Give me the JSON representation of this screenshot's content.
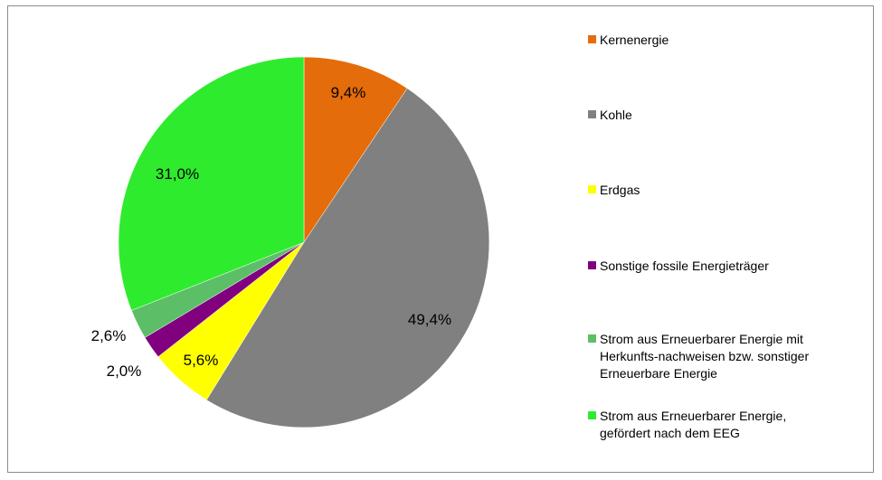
{
  "chart_data": {
    "type": "pie",
    "start_angle_deg": 0,
    "direction": "clockwise",
    "legend_position": "right",
    "slices": [
      {
        "name": "Kernenergie",
        "value": 9.4,
        "label": "9,4%",
        "color": "#E46C0A"
      },
      {
        "name": "Kohle",
        "value": 49.4,
        "label": "49,4%",
        "color": "#808080"
      },
      {
        "name": "Erdgas",
        "value": 5.6,
        "label": "5,6%",
        "color": "#FFFF00"
      },
      {
        "name": "Sonstige fossile Energieträger",
        "value": 2.0,
        "label": "2,0%",
        "color": "#800080"
      },
      {
        "name": "Strom aus Erneuerbarer Energie mit Herkunfts-nachweisen bzw. sonstiger Erneuerbare Energie",
        "value": 2.6,
        "label": "2,6%",
        "color": "#5CBF68"
      },
      {
        "name": "Strom aus Erneuerbarer Energie, gefördert nach dem EEG",
        "value": 31.0,
        "label": "31,0%",
        "color": "#2EEB2E"
      }
    ]
  },
  "legend": {
    "items": [
      {
        "label": "Kernenergie",
        "color": "#E46C0A"
      },
      {
        "label": "Kohle",
        "color": "#808080"
      },
      {
        "label": "Erdgas",
        "color": "#FFFF00"
      },
      {
        "label": "Sonstige fossile Energieträger",
        "color": "#800080"
      },
      {
        "label": "Strom aus Erneuerbarer Energie mit\nHerkunfts-nachweisen bzw. sonstiger\nErneuerbare Energie",
        "color": "#5CBF68"
      },
      {
        "label": "Strom aus Erneuerbarer Energie,\ngefördert nach dem EEG",
        "color": "#2EEB2E"
      }
    ]
  }
}
